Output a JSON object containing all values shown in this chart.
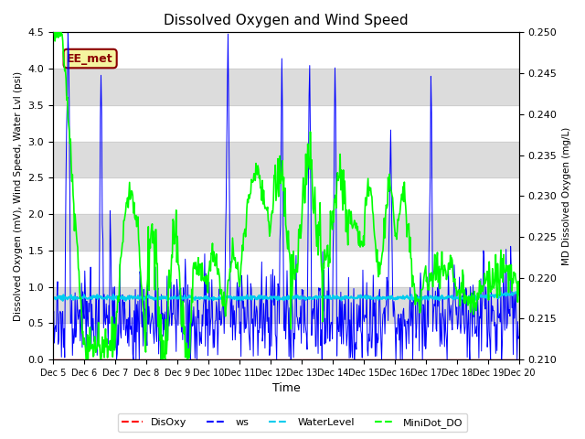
{
  "title": "Dissolved Oxygen and Wind Speed",
  "xlabel": "Time",
  "ylabel_left": "Dissolved Oxygen (mV), Wind Speed, Water Lvl (psi)",
  "ylabel_right": "MD Dissolved Oxygen (mg/L)",
  "ylim_left": [
    0.0,
    4.5
  ],
  "ylim_right": [
    0.21,
    0.25
  ],
  "xlim": [
    0,
    15
  ],
  "annotation_text": "EE_met",
  "annotation_bg": "#f5f5a0",
  "annotation_border": "#8B0000",
  "legend_entries": [
    "DisOxy",
    "ws",
    "WaterLevel",
    "MiniDot_DO"
  ],
  "legend_colors": [
    "#FF0000",
    "#0000FF",
    "#00CCEE",
    "#00FF00"
  ],
  "water_level": 0.85,
  "band_ranges": [
    [
      0.5,
      1.0
    ],
    [
      1.5,
      2.0
    ],
    [
      2.5,
      3.0
    ],
    [
      3.5,
      4.0
    ]
  ],
  "band_color": "#DCDCDC",
  "xtick_labels": [
    "Dec 5",
    "Dec 6",
    "Dec 7",
    "Dec 8",
    "Dec 9",
    "Dec 10",
    "Dec 11",
    "Dec 12",
    "Dec 13",
    "Dec 14",
    "Dec 15",
    "Dec 16",
    "Dec 17",
    "Dec 18",
    "Dec 19",
    "Dec 20"
  ],
  "xtick_positions": [
    0,
    1,
    2,
    3,
    4,
    5,
    6,
    7,
    8,
    9,
    10,
    11,
    12,
    13,
    14,
    15
  ]
}
